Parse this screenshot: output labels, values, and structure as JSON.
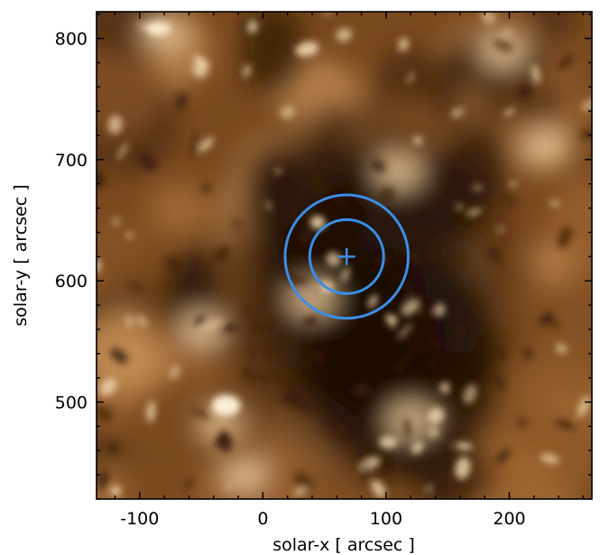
{
  "figure": {
    "xlabel": "solar-x [ arcsec ]",
    "ylabel": "solar-y [ arcsec ]",
    "xlim": [
      -135,
      267
    ],
    "ylim": [
      420,
      822
    ],
    "x_ticks_major": [
      -100,
      0,
      100,
      200
    ],
    "x_tick_labels": [
      "-100",
      "0",
      "100",
      "200"
    ],
    "y_ticks_major": [
      500,
      600,
      700,
      800
    ],
    "y_tick_labels": [
      "500",
      "600",
      "700",
      "800"
    ],
    "x_minor_step": 20,
    "y_minor_step": 20,
    "image_description_colormap": "sdo-aia-171-gold",
    "colors": {
      "marker": "#3a8ee8",
      "image_dark": "#1a0d04",
      "image_mid": "#6a3f18",
      "image_bright": "#f4dcb4"
    }
  },
  "annotation": {
    "center_x": 68,
    "center_y": 620,
    "inner_radius": 30,
    "outer_radius": 50,
    "cross_halfsize": 7
  }
}
